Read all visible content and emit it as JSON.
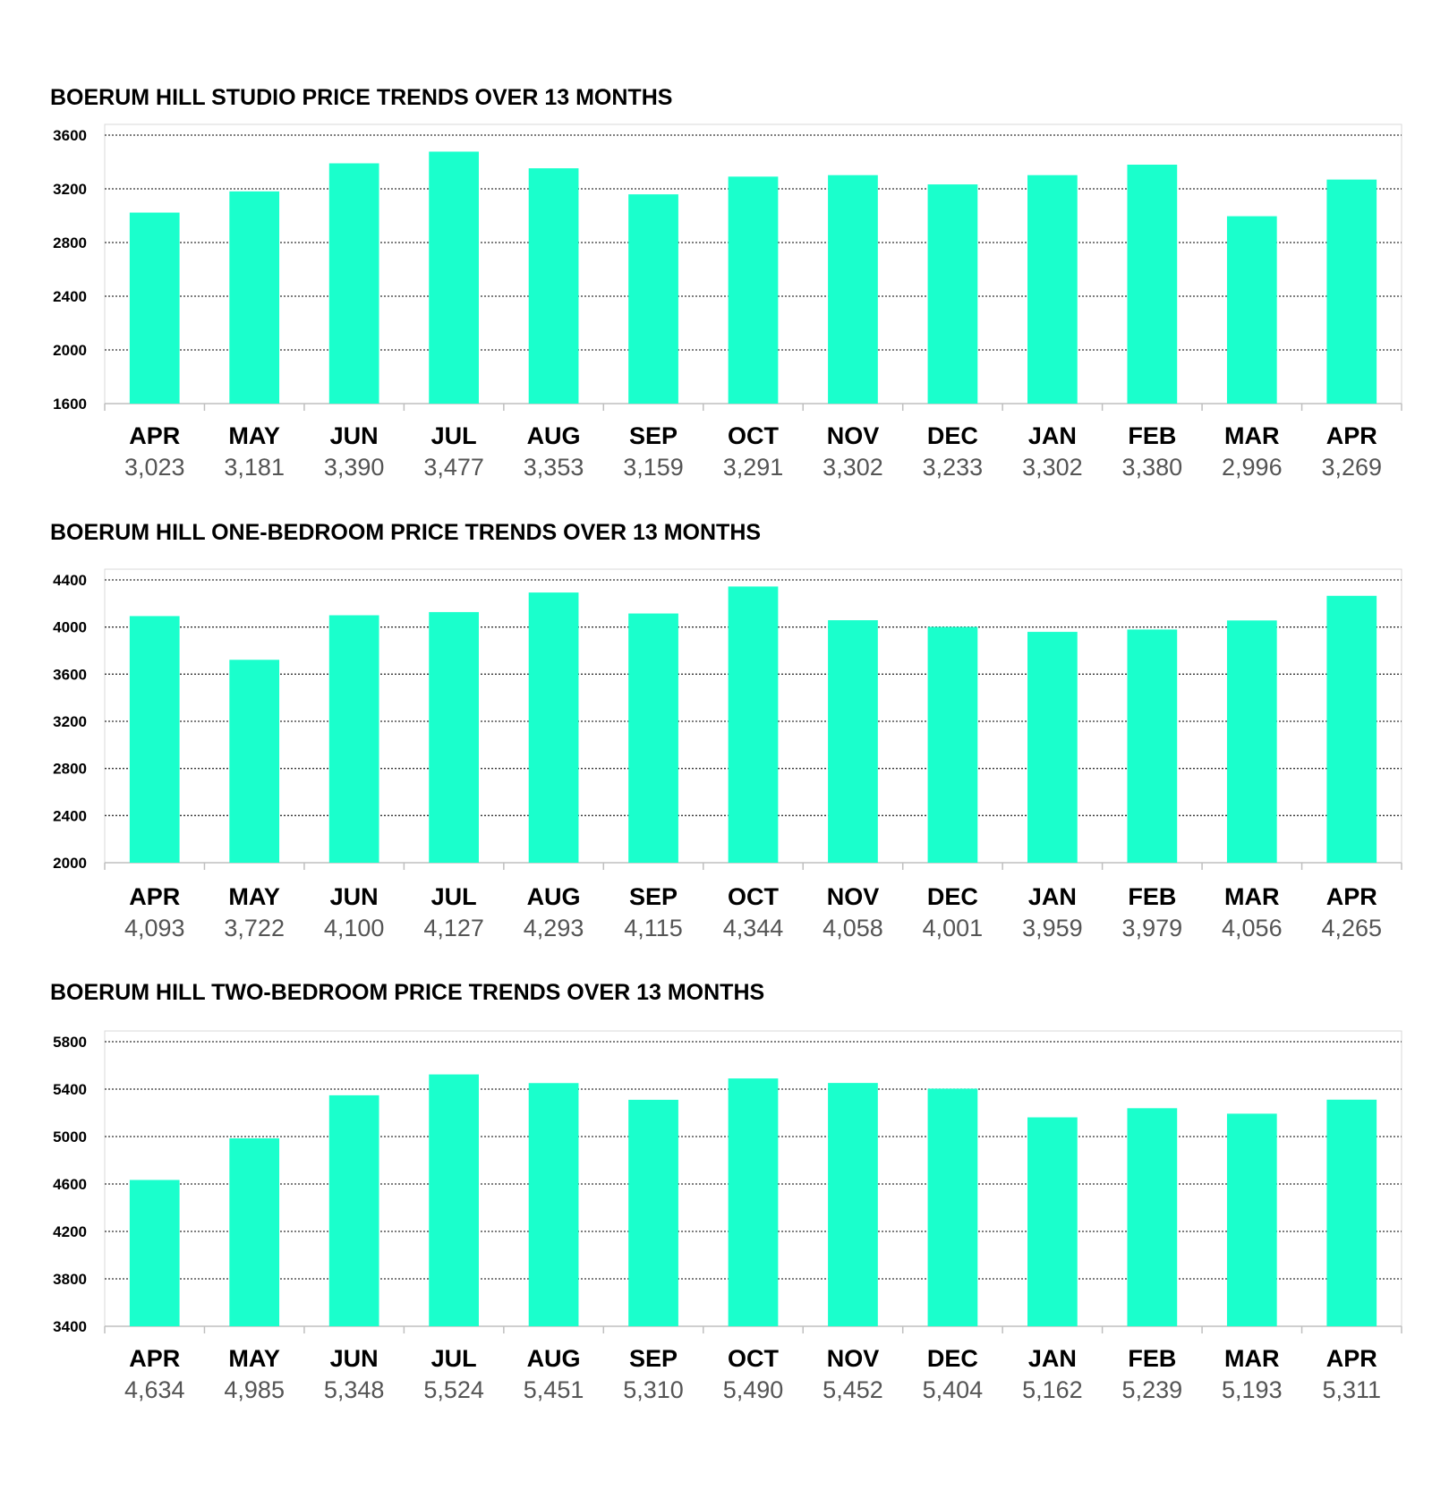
{
  "chart_data": [
    {
      "type": "bar",
      "title": "BOERUM HILL STUDIO PRICE TRENDS OVER 13 MONTHS",
      "categories": [
        "APR",
        "MAY",
        "JUN",
        "JUL",
        "AUG",
        "SEP",
        "OCT",
        "NOV",
        "DEC",
        "JAN",
        "FEB",
        "MAR",
        "APR"
      ],
      "values": [
        3023,
        3181,
        3390,
        3477,
        3353,
        3159,
        3291,
        3302,
        3233,
        3302,
        3380,
        2996,
        3269
      ],
      "value_labels": [
        "3,023",
        "3,181",
        "3,390",
        "3,477",
        "3,353",
        "3,159",
        "3,291",
        "3,302",
        "3,233",
        "3,302",
        "3,380",
        "2,996",
        "3,269"
      ],
      "yticks": [
        "1600",
        "2000",
        "2400",
        "2800",
        "3200",
        "3600"
      ],
      "ylim": [
        1600,
        3600
      ],
      "grid": true,
      "bar_color": "#1affcc"
    },
    {
      "type": "bar",
      "title": "BOERUM HILL ONE-BEDROOM PRICE TRENDS OVER 13 MONTHS",
      "categories": [
        "APR",
        "MAY",
        "JUN",
        "JUL",
        "AUG",
        "SEP",
        "OCT",
        "NOV",
        "DEC",
        "JAN",
        "FEB",
        "MAR",
        "APR"
      ],
      "values": [
        4093,
        3722,
        4100,
        4127,
        4293,
        4115,
        4344,
        4058,
        4001,
        3959,
        3979,
        4056,
        4265
      ],
      "value_labels": [
        "4,093",
        "3,722",
        "4,100",
        "4,127",
        "4,293",
        "4,115",
        "4,344",
        "4,058",
        "4,001",
        "3,959",
        "3,979",
        "4,056",
        "4,265"
      ],
      "yticks": [
        "2000",
        "2400",
        "2800",
        "3200",
        "3600",
        "4000",
        "4400"
      ],
      "ylim": [
        2000,
        4400
      ],
      "grid": true,
      "bar_color": "#1affcc"
    },
    {
      "type": "bar",
      "title": "BOERUM HILL TWO-BEDROOM PRICE TRENDS OVER 13 MONTHS",
      "categories": [
        "APR",
        "MAY",
        "JUN",
        "JUL",
        "AUG",
        "SEP",
        "OCT",
        "NOV",
        "DEC",
        "JAN",
        "FEB",
        "MAR",
        "APR"
      ],
      "values": [
        4634,
        4985,
        5348,
        5524,
        5451,
        5310,
        5490,
        5452,
        5404,
        5162,
        5239,
        5193,
        5311
      ],
      "value_labels": [
        "4,634",
        "4,985",
        "5,348",
        "5,524",
        "5,451",
        "5,310",
        "5,490",
        "5,452",
        "5,404",
        "5,162",
        "5,239",
        "5,193",
        "5,311"
      ],
      "yticks": [
        "3400",
        "3800",
        "4200",
        "4600",
        "5000",
        "5400",
        "5800"
      ],
      "ylim": [
        3400,
        5800
      ],
      "grid": true,
      "bar_color": "#1affcc"
    }
  ]
}
